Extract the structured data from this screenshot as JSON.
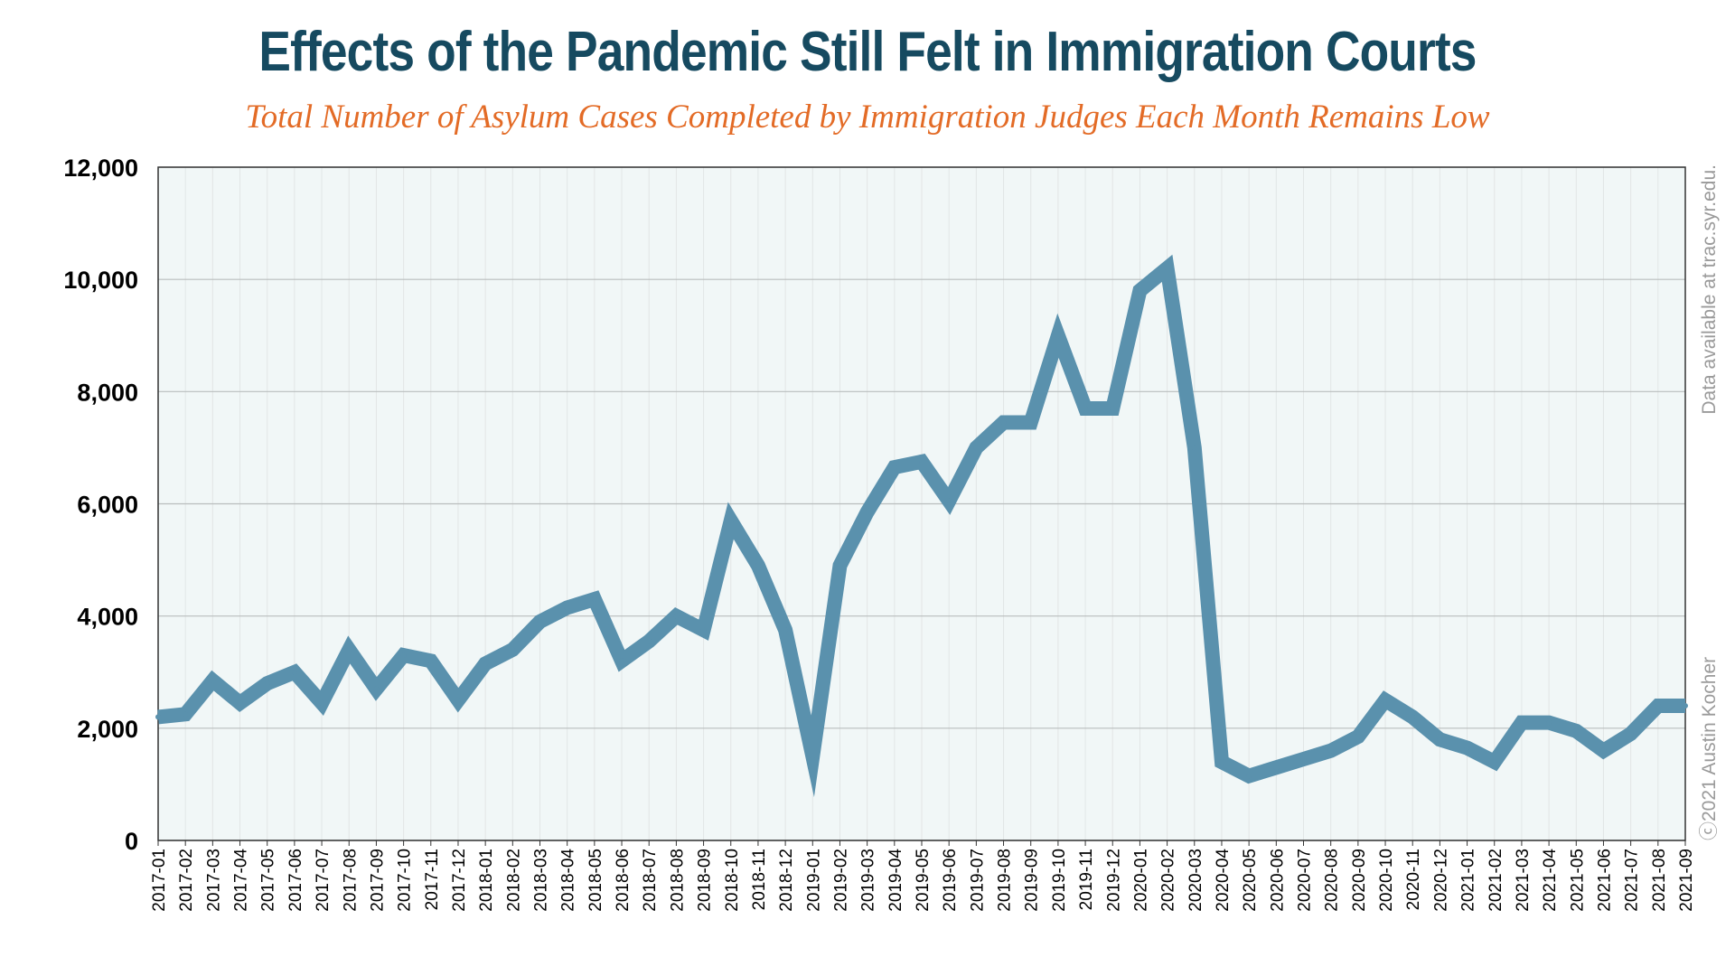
{
  "chart_data": {
    "type": "line",
    "title": "Effects of the Pandemic Still Felt in Immigration Courts",
    "subtitle": "Total Number of Asylum Cases Completed by Immigration Judges Each Month Remains Low",
    "xlabel": "",
    "ylabel": "",
    "ylim": [
      0,
      12000
    ],
    "yticks": [
      0,
      2000,
      4000,
      6000,
      8000,
      10000,
      12000
    ],
    "ytick_labels": [
      "0",
      "2,000",
      "4,000",
      "6,000",
      "8,000",
      "10,000",
      "12,000"
    ],
    "grid": "horizontal",
    "legend": "none",
    "line_color": "#5a91ad",
    "x": [
      "2017-01",
      "2017-02",
      "2017-03",
      "2017-04",
      "2017-05",
      "2017-06",
      "2017-07",
      "2017-08",
      "2017-09",
      "2017-10",
      "2017-11",
      "2017-12",
      "2018-01",
      "2018-02",
      "2018-03",
      "2018-04",
      "2018-05",
      "2018-06",
      "2018-07",
      "2018-08",
      "2018-09",
      "2018-10",
      "2018-11",
      "2018-12",
      "2019-01",
      "2019-02",
      "2019-03",
      "2019-04",
      "2019-05",
      "2019-06",
      "2019-07",
      "2019-08",
      "2019-09",
      "2019-10",
      "2019-11",
      "2019-12",
      "2020-01",
      "2020-02",
      "2020-03",
      "2020-04",
      "2020-05",
      "2020-06",
      "2020-07",
      "2020-08",
      "2020-09",
      "2020-10",
      "2020-11",
      "2020-12",
      "2021-01",
      "2021-02",
      "2021-03",
      "2021-04",
      "2021-05",
      "2021-06",
      "2021-07",
      "2021-08",
      "2021-09"
    ],
    "values": [
      2200,
      2250,
      2850,
      2450,
      2800,
      3000,
      2450,
      3400,
      2700,
      3300,
      3200,
      2500,
      3150,
      3400,
      3900,
      4150,
      4300,
      3200,
      3550,
      4000,
      3750,
      5700,
      4900,
      3750,
      1500,
      4900,
      5850,
      6650,
      6750,
      6050,
      7000,
      7450,
      7450,
      9000,
      7700,
      7700,
      9800,
      10200,
      7000,
      1400,
      1150,
      1300,
      1450,
      1600,
      1850,
      2500,
      2200,
      1800,
      1650,
      1400,
      2100,
      2100,
      1950,
      1600,
      1900,
      2400,
      2400
    ]
  },
  "side_notes": {
    "data_source": "Data available at trac.syr.edu.",
    "credit": "ⓒ2021 Austin Kocher"
  }
}
